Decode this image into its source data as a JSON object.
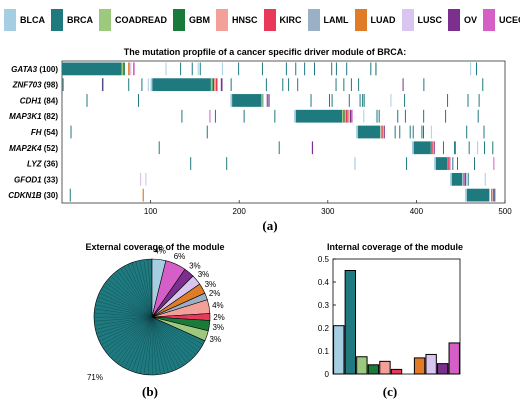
{
  "legend": [
    {
      "name": "BLCA",
      "color": "#a6cee3"
    },
    {
      "name": "BRCA",
      "color": "#1f7a80"
    },
    {
      "name": "COADREAD",
      "color": "#9cc97e"
    },
    {
      "name": "GBM",
      "color": "#1a7a3a"
    },
    {
      "name": "HNSC",
      "color": "#f4a09a"
    },
    {
      "name": "KIRC",
      "color": "#e8395a"
    },
    {
      "name": "LAML",
      "color": "#9ab0c4"
    },
    {
      "name": "LUAD",
      "color": "#e07b27"
    },
    {
      "name": "LUSC",
      "color": "#d9c6f0"
    },
    {
      "name": "OV",
      "color": "#7b2f8e"
    },
    {
      "name": "UCEC",
      "color": "#d65ec7"
    }
  ],
  "panels": {
    "a": "(a)",
    "b": "(b)",
    "c": "(c)"
  },
  "chart_data": [
    {
      "type": "heatmap",
      "title": "The mutation propfile of a cancer specific driver module of BRCA:",
      "genes": [
        {
          "name": "GATA3",
          "count": "(100)"
        },
        {
          "name": "ZNF703",
          "count": "(98)"
        },
        {
          "name": "CDH1",
          "count": "(84)"
        },
        {
          "name": "MAP3K1",
          "count": "(82)"
        },
        {
          "name": "FH",
          "count": "(54)"
        },
        {
          "name": "MAP2K4",
          "count": "(52)"
        },
        {
          "name": "LYZ",
          "count": "(36)"
        },
        {
          "name": "GFOD1",
          "count": "(33)"
        },
        {
          "name": "CDKN1B",
          "count": "(30)"
        }
      ],
      "x_ticks": [
        100,
        200,
        300,
        400,
        500
      ],
      "xlim": [
        0,
        500
      ]
    },
    {
      "type": "pie",
      "title": "External coverage of the module",
      "slices": [
        {
          "label": "71%",
          "value": 71,
          "color": "#1f7a80"
        },
        {
          "label": "4%",
          "value": 4,
          "color": "#a6cee3"
        },
        {
          "label": "6%",
          "value": 6,
          "color": "#d65ec7"
        },
        {
          "label": "3%",
          "value": 3,
          "color": "#7b2f8e"
        },
        {
          "label": "3%",
          "value": 3,
          "color": "#d9c6f0"
        },
        {
          "label": "3%",
          "value": 3,
          "color": "#e07b27"
        },
        {
          "label": "2%",
          "value": 2,
          "color": "#9ab0c4"
        },
        {
          "label": "4%",
          "value": 4,
          "color": "#f4a09a"
        },
        {
          "label": "2%",
          "value": 2,
          "color": "#e8395a"
        },
        {
          "label": "3%",
          "value": 3,
          "color": "#1a7a3a"
        },
        {
          "label": "3%",
          "value": 3,
          "color": "#9cc97e"
        }
      ]
    },
    {
      "type": "bar",
      "title": "Internal coverage of the module",
      "categories": [
        "BLCA",
        "BRCA",
        "COADREAD",
        "GBM",
        "HNSC",
        "KIRC",
        "LAML",
        "LUAD",
        "LUSC",
        "OV",
        "UCEC"
      ],
      "values": [
        0.21,
        0.45,
        0.075,
        0.04,
        0.055,
        0.02,
        0.0,
        0.07,
        0.085,
        0.045,
        0.135
      ],
      "ylim": [
        0,
        0.5
      ],
      "y_ticks": [
        0,
        0.1,
        0.2,
        0.3,
        0.4,
        0.5
      ]
    }
  ]
}
